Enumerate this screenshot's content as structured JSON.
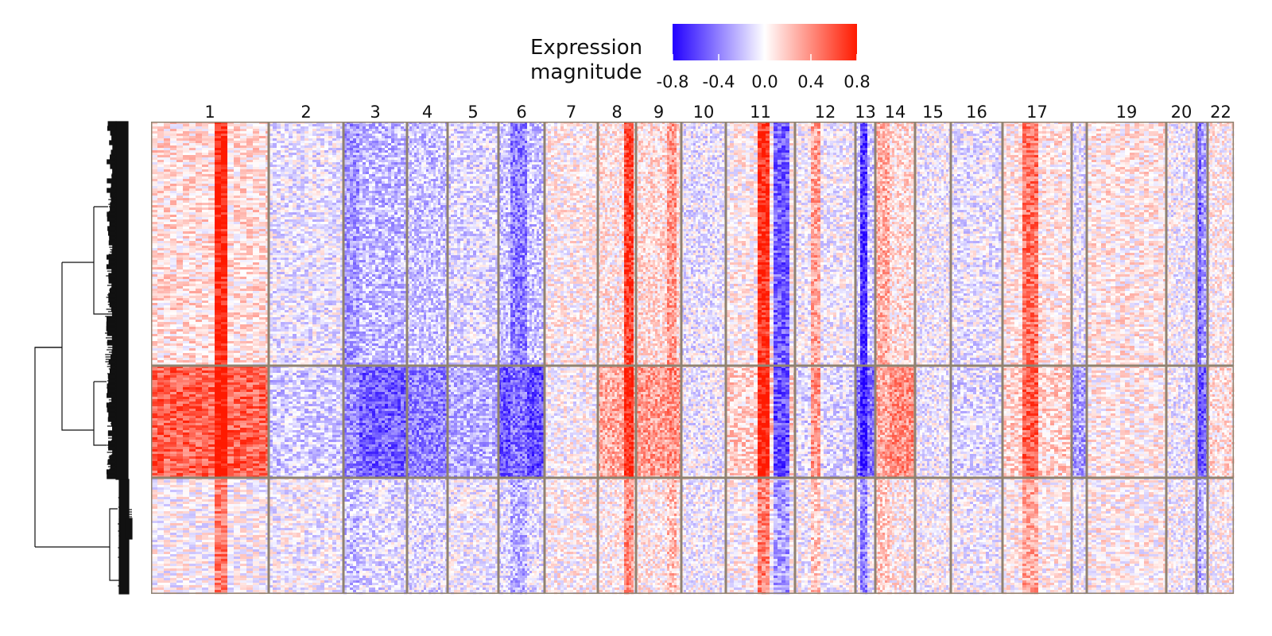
{
  "chart_data": {
    "type": "heatmap",
    "legend": {
      "title_lines": [
        "Expression",
        "magnitude"
      ],
      "min": -0.8,
      "max": 0.8,
      "ticks": [
        "-0.8",
        "-0.4",
        "0.0",
        "0.4",
        "0.8"
      ],
      "colors": {
        "low": "#2200ff",
        "mid": "#ffffff",
        "high": "#ff1a00"
      }
    },
    "column_groups": [
      "1",
      "2",
      "3",
      "4",
      "5",
      "6",
      "7",
      "8",
      "9",
      "10",
      "11",
      "12",
      "13",
      "14",
      "15",
      "16",
      "17",
      "18",
      "19",
      "20",
      "21",
      "22"
    ],
    "column_group_labels": [
      "1",
      "2",
      "3",
      "4",
      "5",
      "6",
      "7",
      "8",
      "9",
      "10",
      "11",
      "12",
      "13",
      "14",
      "15",
      "16",
      "17",
      "",
      "19",
      "20",
      "",
      "22"
    ],
    "row_clusters": 3,
    "dendrogram": "left",
    "grid_color": "#8f8270"
  }
}
